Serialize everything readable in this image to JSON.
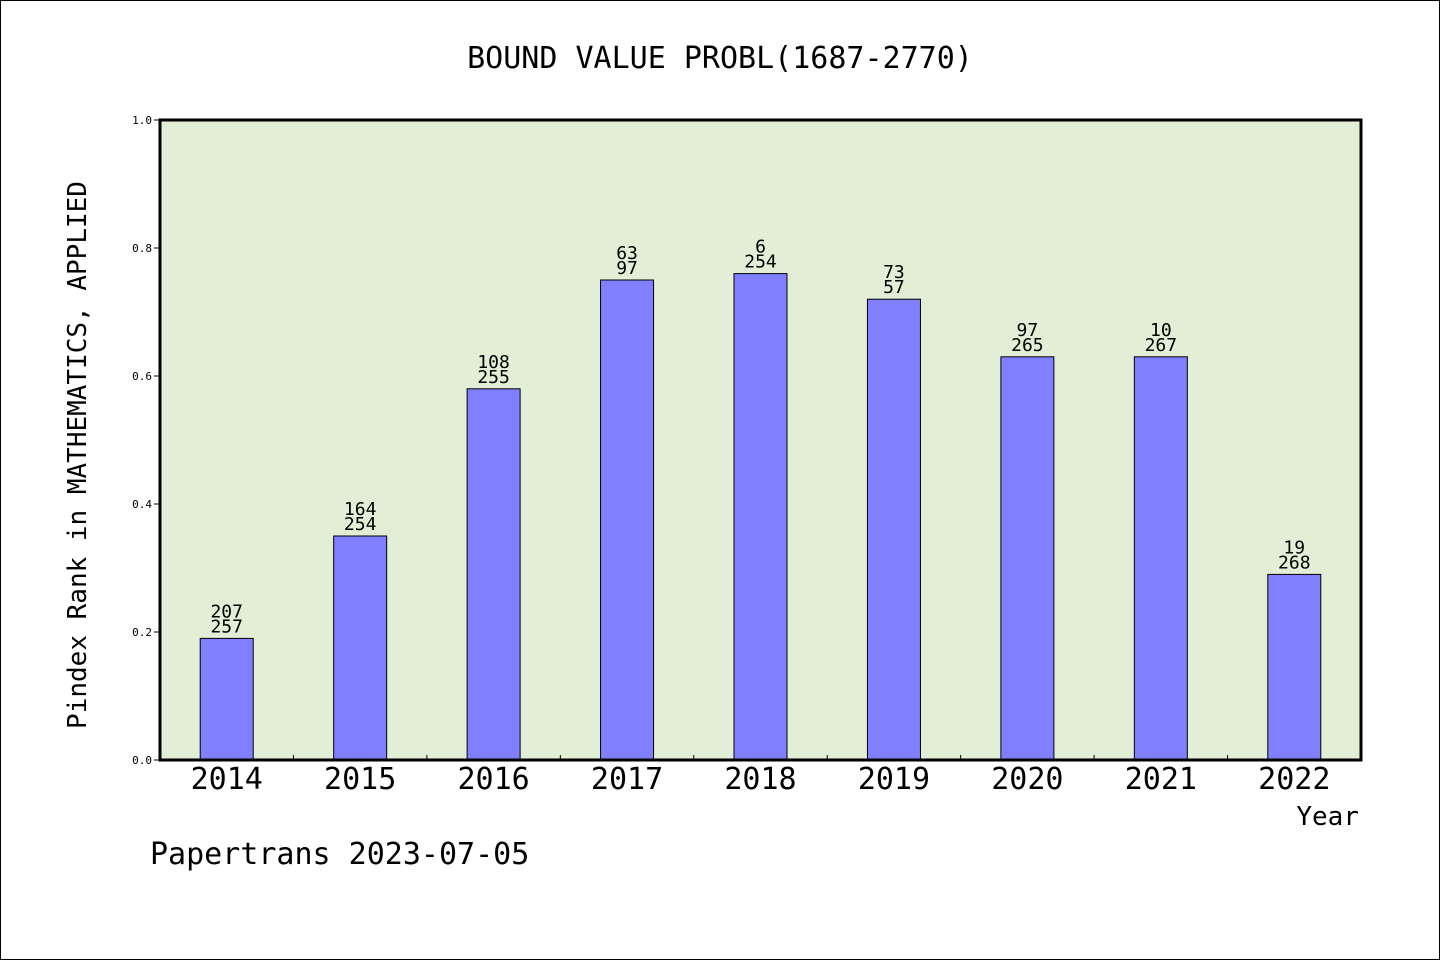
{
  "chart_data": {
    "type": "bar",
    "title": "BOUND VALUE PROBL(1687-2770)",
    "xlabel": "Year",
    "ylabel": "Pindex Rank in MATHEMATICS, APPLIED",
    "ylim": [
      0,
      1.0
    ],
    "yticks": [
      "0.0",
      "0.2",
      "0.4",
      "0.6",
      "0.8",
      "1.0"
    ],
    "categories": [
      "2014",
      "2015",
      "2016",
      "2017",
      "2018",
      "2019",
      "2020",
      "2021",
      "2022"
    ],
    "values": [
      0.19,
      0.35,
      0.58,
      0.75,
      0.76,
      0.72,
      0.63,
      0.63,
      0.29
    ],
    "labels_top": [
      "207",
      "164",
      "108",
      "63",
      "6",
      "73",
      "97",
      "10",
      "19"
    ],
    "labels_bottom": [
      "257",
      "254",
      "255",
      "97",
      "254",
      "57",
      "265",
      "267",
      "268"
    ],
    "grid": false,
    "plot_bg": "#e2efd6",
    "bar_color": "#8080ff"
  },
  "footer": "Papertrans 2023-07-05"
}
